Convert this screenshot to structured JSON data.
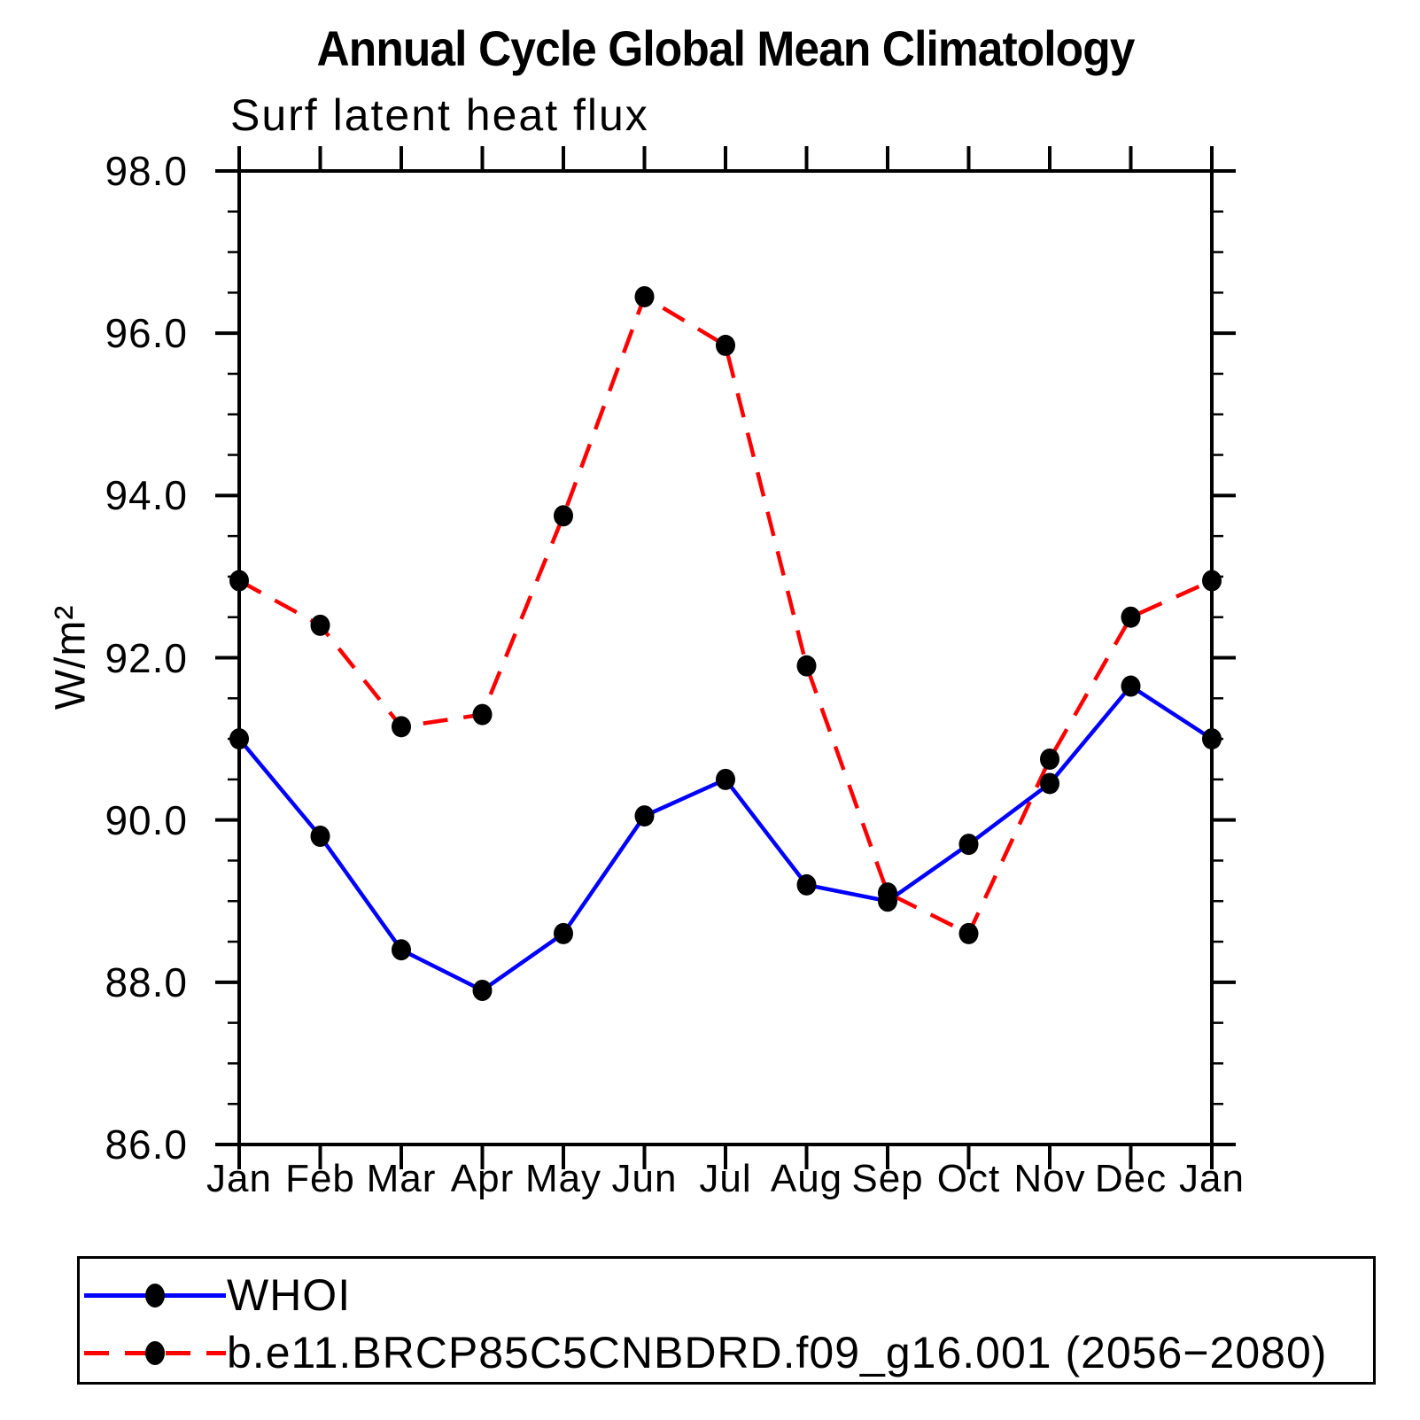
{
  "header": {
    "title": "Annual Cycle Global Mean Climatology",
    "subtitle": "Surf latent heat flux"
  },
  "y_axis": {
    "label": "W/m²",
    "tick_labels": [
      "98.0",
      "96.0",
      "94.0",
      "92.0",
      "90.0",
      "88.0",
      "86.0"
    ]
  },
  "x_axis": {
    "tick_labels": [
      "Jan",
      "Feb",
      "Mar",
      "Apr",
      "May",
      "Jun",
      "Jul",
      "Aug",
      "Sep",
      "Oct",
      "Nov",
      "Dec",
      "Jan"
    ]
  },
  "legend": {
    "items": [
      {
        "label": "WHOI",
        "color": "#0000ff",
        "line": "solid",
        "marker": "circle"
      },
      {
        "label": "b.e11.BRCP85C5CNBDRD.f09_g16.001 (2056−2080)",
        "color": "#ff0000",
        "line": "dashed",
        "marker": "circle"
      }
    ]
  },
  "chart_data": {
    "type": "line",
    "title": "Annual Cycle Global Mean Climatology",
    "subtitle": "Surf latent heat flux",
    "xlabel": "",
    "ylabel": "W/m²",
    "categories": [
      "Jan",
      "Feb",
      "Mar",
      "Apr",
      "May",
      "Jun",
      "Jul",
      "Aug",
      "Sep",
      "Oct",
      "Nov",
      "Dec",
      "Jan"
    ],
    "series": [
      {
        "name": "WHOI",
        "color": "#0000ff",
        "line": "solid",
        "marker": "filled-circle",
        "marker_color": "#000000",
        "values": [
          91.0,
          89.8,
          88.4,
          87.9,
          88.6,
          90.05,
          90.5,
          89.2,
          89.0,
          89.7,
          90.45,
          91.65,
          91.0
        ]
      },
      {
        "name": "b.e11.BRCP85C5CNBDRD.f09_g16.001 (2056−2080)",
        "color": "#ff0000",
        "line": "dashed",
        "marker": "filled-circle",
        "marker_color": "#000000",
        "values": [
          92.95,
          92.4,
          91.15,
          91.3,
          93.75,
          96.45,
          95.85,
          91.9,
          89.1,
          88.6,
          90.75,
          92.5,
          92.95
        ]
      }
    ],
    "ylim": [
      86.0,
      98.0
    ],
    "ytick_major_interval": 2.0,
    "ytick_minor_interval": 0.5,
    "grid": false,
    "legend_position": "bottom"
  }
}
